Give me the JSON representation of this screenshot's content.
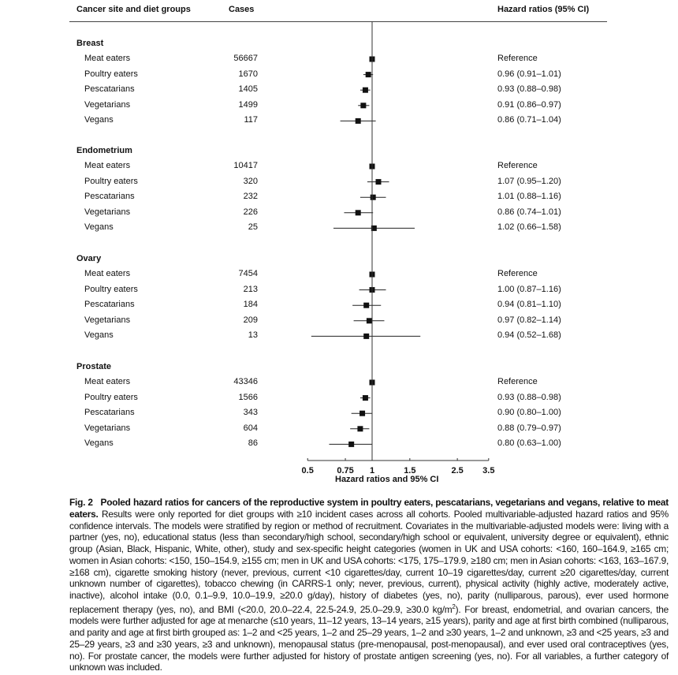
{
  "header": {
    "col_group": "Cancer site and diet groups",
    "col_cases": "Cases",
    "col_hr": "Hazard ratios (95% CI)"
  },
  "chart_data": {
    "type": "forest",
    "xlabel": "Hazard ratios and 95% CI",
    "x_scale": "log",
    "xlim": [
      0.5,
      3.5
    ],
    "reference_line": 1,
    "x_ticks": [
      "0.5",
      "0.75",
      "1",
      "1.5",
      "2.5",
      "3.5"
    ],
    "x_tick_values": [
      0.5,
      0.75,
      1,
      1.5,
      2.5,
      3.5
    ],
    "sections": [
      {
        "site": "Breast",
        "rows": [
          {
            "group": "Meat eaters",
            "cases": "56667",
            "hr": 1,
            "lo": 1,
            "hi": 1,
            "label": "Reference"
          },
          {
            "group": "Poultry eaters",
            "cases": "1670",
            "hr": 0.96,
            "lo": 0.91,
            "hi": 1.01,
            "label": "0.96 (0.91–1.01)"
          },
          {
            "group": "Pescatarians",
            "cases": "1405",
            "hr": 0.93,
            "lo": 0.88,
            "hi": 0.98,
            "label": "0.93 (0.88–0.98)"
          },
          {
            "group": "Vegetarians",
            "cases": "1499",
            "hr": 0.91,
            "lo": 0.86,
            "hi": 0.97,
            "label": "0.91 (0.86–0.97)"
          },
          {
            "group": "Vegans",
            "cases": "117",
            "hr": 0.86,
            "lo": 0.71,
            "hi": 1.04,
            "label": "0.86 (0.71–1.04)"
          }
        ]
      },
      {
        "site": "Endometrium",
        "rows": [
          {
            "group": "Meat eaters",
            "cases": "10417",
            "hr": 1,
            "lo": 1,
            "hi": 1,
            "label": "Reference"
          },
          {
            "group": "Poultry eaters",
            "cases": "320",
            "hr": 1.07,
            "lo": 0.95,
            "hi": 1.2,
            "label": "1.07 (0.95–1.20)"
          },
          {
            "group": "Pescatarians",
            "cases": "232",
            "hr": 1.01,
            "lo": 0.88,
            "hi": 1.16,
            "label": "1.01 (0.88–1.16)"
          },
          {
            "group": "Vegetarians",
            "cases": "226",
            "hr": 0.86,
            "lo": 0.74,
            "hi": 1.01,
            "label": "0.86 (0.74–1.01)"
          },
          {
            "group": "Vegans",
            "cases": "25",
            "hr": 1.02,
            "lo": 0.66,
            "hi": 1.58,
            "label": "1.02 (0.66–1.58)"
          }
        ]
      },
      {
        "site": "Ovary",
        "rows": [
          {
            "group": "Meat eaters",
            "cases": "7454",
            "hr": 1,
            "lo": 1,
            "hi": 1,
            "label": "Reference"
          },
          {
            "group": "Poultry eaters",
            "cases": "213",
            "hr": 1.0,
            "lo": 0.87,
            "hi": 1.16,
            "label": "1.00 (0.87–1.16)"
          },
          {
            "group": "Pescatarians",
            "cases": "184",
            "hr": 0.94,
            "lo": 0.81,
            "hi": 1.1,
            "label": "0.94 (0.81–1.10)"
          },
          {
            "group": "Vegetarians",
            "cases": "209",
            "hr": 0.97,
            "lo": 0.82,
            "hi": 1.14,
            "label": "0.97 (0.82–1.14)"
          },
          {
            "group": "Vegans",
            "cases": "13",
            "hr": 0.94,
            "lo": 0.52,
            "hi": 1.68,
            "label": "0.94 (0.52–1.68)"
          }
        ]
      },
      {
        "site": "Prostate",
        "rows": [
          {
            "group": "Meat eaters",
            "cases": "43346",
            "hr": 1,
            "lo": 1,
            "hi": 1,
            "label": "Reference"
          },
          {
            "group": "Poultry eaters",
            "cases": "1566",
            "hr": 0.93,
            "lo": 0.88,
            "hi": 0.98,
            "label": "0.93 (0.88–0.98)"
          },
          {
            "group": "Pescatarians",
            "cases": "343",
            "hr": 0.9,
            "lo": 0.8,
            "hi": 1.0,
            "label": "0.90 (0.80–1.00)"
          },
          {
            "group": "Vegetarians",
            "cases": "604",
            "hr": 0.88,
            "lo": 0.79,
            "hi": 0.97,
            "label": "0.88 (0.79–0.97)"
          },
          {
            "group": "Vegans",
            "cases": "86",
            "hr": 0.8,
            "lo": 0.63,
            "hi": 1.0,
            "label": "0.80 (0.63–1.00)"
          }
        ]
      }
    ]
  },
  "caption": {
    "fig_label": "Fig. 2",
    "title": "Pooled hazard ratios for cancers of the reproductive system in poultry eaters, pescatarians, vegetarians and vegans, relative to meat eaters.",
    "body_1": "Results were only reported for diet groups with ≥10 incident cases across all cohorts. Pooled multivariable-adjusted hazard ratios and 95% confidence intervals. The models were stratified by region or method of recruitment. Covariates in the multivariable-adjusted models were: living with a partner (yes, no), educational status (less than secondary/high school, secondary/high school or equivalent, university degree or equivalent), ethnic group (Asian, Black, Hispanic, White, other), study and sex-specific height categories (women in UK and USA cohorts: <160, 160–164.9, ≥165 cm; women in Asian cohorts: <150, 150–154.9, ≥155 cm; men in UK and USA cohorts: <175, 175–179.9, ≥180 cm; men in Asian cohorts: <163, 163–167.9, ≥168 cm), cigarette smoking history (never, previous, current <10 cigarettes/day, current 10–19 cigarettes/day, current ≥20 cigarettes/day, current unknown number of cigarettes), tobacco chewing (in CARRS-1 only; never, previous, current), physical activity (highly active, moderately active, inactive), alcohol intake (0.0, 0.1–9.9, 10.0–19.9, ≥20.0 g/day), history of diabetes (yes, no), parity (nulliparous, parous), ever used hormone replacement therapy (yes, no), and BMI (<20.0, 20.0–22.4, 22.5-24.9, 25.0–29.9, ≥30.0 kg/m",
    "superscript": "2",
    "body_2": "). For breast, endometrial, and ovarian cancers, the models were further adjusted for age at menarche (≤10 years, 11–12 years, 13–14 years, ≥15 years), parity and age at first birth combined (nulliparous, and parity and age at first birth grouped as: 1–2 and <25 years, 1–2 and 25–29 years, 1–2 and ≥30 years, 1–2 and unknown, ≥3 and <25 years, ≥3 and 25–29 years, ≥3 and ≥30 years, ≥3 and unknown), menopausal status (pre-menopausal, post-menopausal), and ever used oral contraceptives (yes, no). For prostate cancer, the models were further adjusted for history of prostate antigen screening (yes, no). For all variables, a further category of unknown was included."
  }
}
